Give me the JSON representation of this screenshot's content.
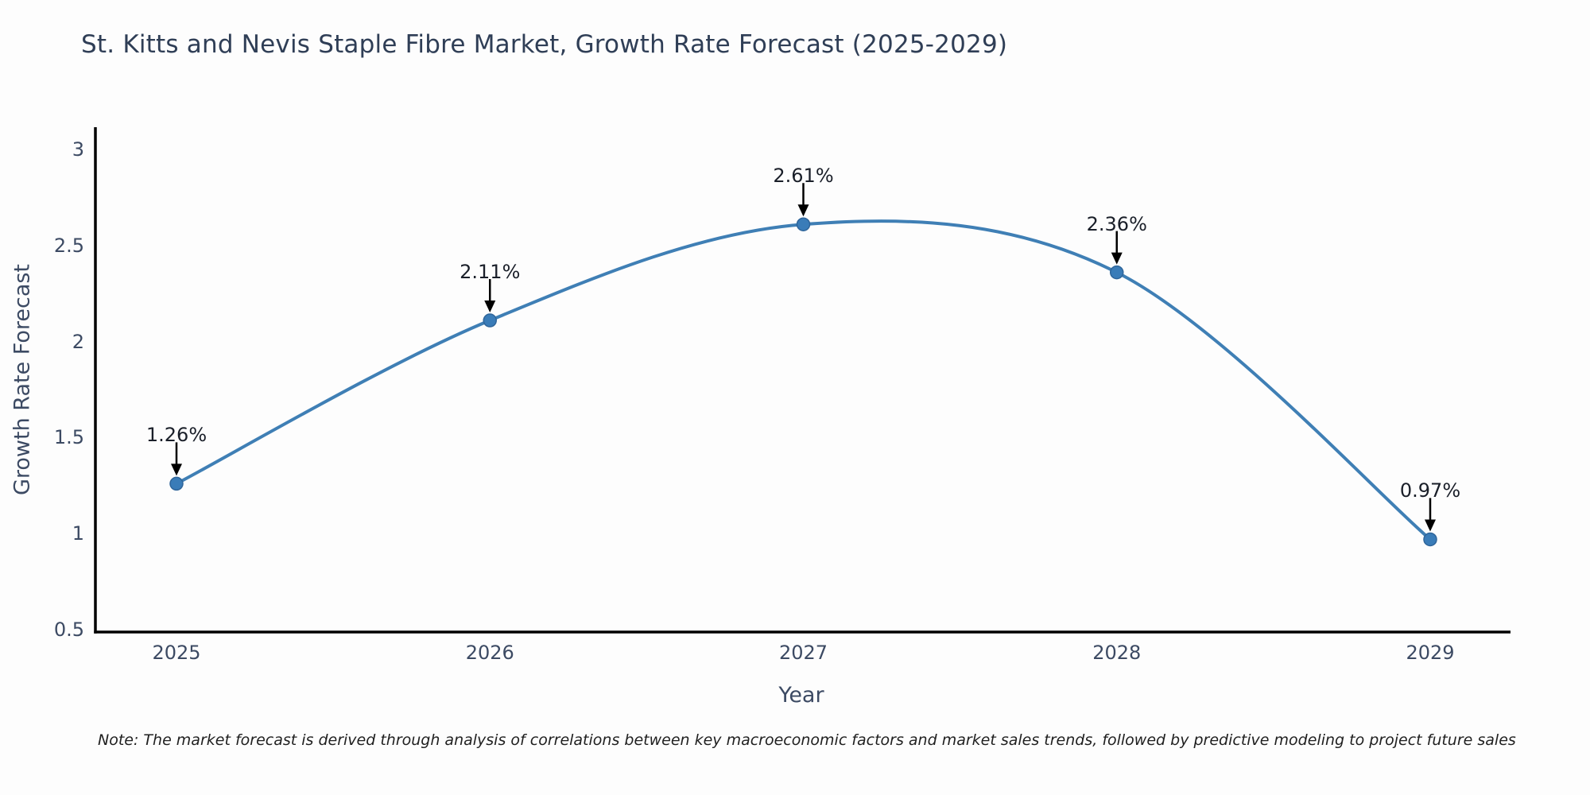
{
  "title": "St. Kitts and Nevis Staple Fibre Market, Growth Rate Forecast (2025-2029)",
  "note": "Note: The market forecast is derived through analysis of correlations between key macroeconomic factors and market sales trends, followed by predictive modeling to project future sales",
  "chart_data": {
    "type": "line",
    "x": [
      2025,
      2026,
      2027,
      2028,
      2029
    ],
    "values": [
      1.26,
      2.11,
      2.61,
      2.36,
      0.97
    ],
    "point_labels": [
      "1.26%",
      "2.11%",
      "2.61%",
      "2.36%",
      "0.97%"
    ],
    "title": "St. Kitts and Nevis Staple Fibre Market, Growth Rate Forecast (2025-2029)",
    "xlabel": "Year",
    "ylabel": "Growth Rate Forecast",
    "ylim": [
      0.5,
      3
    ],
    "yticks": [
      3,
      2.5,
      2,
      1.5,
      1,
      0.5
    ],
    "grid": false,
    "legend": false,
    "line_color": "#3f7fb5",
    "marker_color": "#3a7cb8",
    "marker_edge_color": "#2f659a",
    "axis_color": "#000000",
    "annotation_arrow_color": "#000000"
  }
}
